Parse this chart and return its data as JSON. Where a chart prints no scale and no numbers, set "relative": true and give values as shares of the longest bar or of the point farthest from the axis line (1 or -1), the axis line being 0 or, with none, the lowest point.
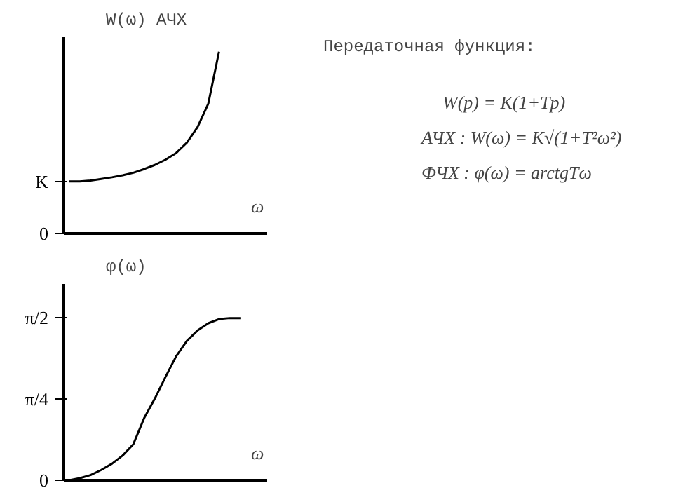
{
  "chart_data": [
    {
      "type": "line",
      "ylabel": "W(ω)  АЧХ",
      "xlabel": "ω",
      "categories": [
        null,
        null,
        null,
        null,
        null,
        null,
        null,
        null,
        null,
        null,
        null,
        null,
        null,
        null,
        null,
        null,
        null,
        null,
        null
      ],
      "series": [
        {
          "color": "#000000",
          "values": [
            0.286,
            0.286,
            0.291,
            0.3,
            0.309,
            0.32,
            0.334,
            0.354,
            0.377,
            0.406,
            0.443,
            0.5,
            0.586,
            0.714,
            1.0,
            null,
            null,
            null,
            null
          ]
        }
      ],
      "relative": true,
      "annotations": [
        "0",
        "K"
      ],
      "grid": false,
      "marker": "none",
      "line_style": "solid"
    },
    {
      "type": "line",
      "ylabel": "φ(ω)",
      "xlabel": "ω",
      "categories": [
        null,
        null,
        null,
        null,
        null,
        null,
        null,
        null,
        null,
        null,
        null,
        null,
        null,
        null,
        null,
        null,
        null,
        null,
        null
      ],
      "series": [
        {
          "color": "#000000",
          "values": [
            0.0,
            0.02,
            0.05,
            0.1,
            0.16,
            0.24,
            0.35,
            0.6,
            0.79,
            1.0,
            1.2,
            1.35,
            1.45,
            1.52,
            1.56,
            1.57,
            1.57,
            null,
            null
          ]
        }
      ],
      "ylim": [
        0,
        1.9
      ],
      "yticks": [
        0,
        {
          "value": 0.785,
          "label": "π/4"
        },
        {
          "value": 1.571,
          "label": "π/2"
        }
      ],
      "tick_labels": "y",
      "grid": false,
      "marker": "none",
      "line_style": "solid"
    },
    {
      "type": "other",
      "title": "Передаточная функция:",
      "annotations": [
        "W(p) = K(1+Tp)",
        "АЧХ  :  W(ω) = K√(1+T²ω²)",
        "ФЧХ  :  φ(ω) = arctgTω"
      ]
    }
  ]
}
